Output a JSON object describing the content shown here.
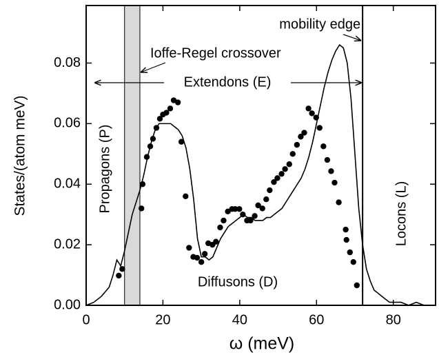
{
  "chart_data": {
    "type": "line",
    "x_label": "ω (meV)",
    "y_label": "States/(atom meV)",
    "xlim": [
      0,
      91
    ],
    "ylim": [
      0,
      0.099
    ],
    "xticks": [
      0,
      20,
      40,
      60,
      80
    ],
    "yticks": [
      {
        "value": 0,
        "label": "0.00"
      },
      {
        "value": 0.02,
        "label": "0.02"
      },
      {
        "value": 0.04,
        "label": "0.04"
      },
      {
        "value": 0.06,
        "label": "0.06"
      },
      {
        "value": 0.08,
        "label": "0.08"
      }
    ],
    "shaded_band": [
      10,
      14
    ],
    "band_color": "#d9d9d9",
    "mobility_edge": 72,
    "annotations": {
      "mobility": "mobility edge",
      "ioffe": "Ioffe-Regel crossover",
      "extendons": "Extendons (E)",
      "propagons": "Propagons (P)",
      "locons": "Locons (L)",
      "diffusons": "Diffusons (D)"
    },
    "series": [
      {
        "type": "line",
        "color": "#000000",
        "x": [
          0,
          2,
          4,
          6,
          7,
          8,
          9,
          10,
          11,
          12,
          13,
          14,
          15,
          16,
          17,
          18,
          19,
          20,
          21,
          22,
          23,
          24,
          25,
          26,
          27,
          28,
          29,
          30,
          31,
          32,
          33,
          34,
          35,
          36,
          37,
          38,
          39,
          40,
          41,
          42,
          43,
          44,
          45,
          46,
          47,
          48,
          49,
          50,
          51,
          52,
          53,
          54,
          55,
          56,
          57,
          58,
          59,
          60,
          61,
          62,
          63,
          64,
          65,
          66,
          67,
          68,
          69,
          70,
          71,
          72,
          73,
          74,
          75,
          76,
          77,
          78,
          79,
          80,
          82,
          84,
          86,
          88
        ],
        "values": [
          0,
          0.001,
          0.003,
          0.006,
          0.01,
          0.015,
          0.013,
          0.018,
          0.024,
          0.03,
          0.034,
          0.038,
          0.043,
          0.049,
          0.054,
          0.058,
          0.06,
          0.06,
          0.06,
          0.06,
          0.059,
          0.058,
          0.056,
          0.052,
          0.045,
          0.035,
          0.022,
          0.016,
          0.016,
          0.015,
          0.016,
          0.019,
          0.022,
          0.024,
          0.026,
          0.027,
          0.028,
          0.029,
          0.03,
          0.029,
          0.029,
          0.028,
          0.028,
          0.028,
          0.029,
          0.029,
          0.03,
          0.031,
          0.032,
          0.034,
          0.036,
          0.038,
          0.04,
          0.042,
          0.045,
          0.049,
          0.054,
          0.06,
          0.066,
          0.072,
          0.077,
          0.081,
          0.084,
          0.086,
          0.085,
          0.08,
          0.068,
          0.05,
          0.032,
          0.02,
          0.012,
          0.008,
          0.005,
          0.004,
          0.003,
          0.002,
          0.001,
          0.001,
          0.001,
          0,
          0.001,
          0
        ]
      },
      {
        "type": "scatter",
        "color": "#000000",
        "x": [
          8.5,
          9.4,
          14.4,
          14.7,
          15.8,
          16.7,
          17.4,
          18.3,
          19.2,
          20,
          20.9,
          21.9,
          22.8,
          23.9,
          24.8,
          25.9,
          26.8,
          27.9,
          28.9,
          30,
          30.9,
          31.8,
          32.9,
          33.8,
          34.9,
          35.8,
          36.9,
          38,
          38.8,
          39.9,
          40.8,
          41.9,
          42.8,
          43.9,
          44.8,
          45.9,
          46.9,
          47.8,
          48.9,
          49.8,
          50.9,
          51.8,
          52.9,
          53.8,
          54.9,
          55.9,
          56.8,
          57.9,
          58.8,
          59.9,
          60.8,
          61.8,
          62.8,
          63.8,
          64.7,
          65.8,
          67.6,
          67.8,
          68.7,
          69.6,
          70.5
        ],
        "values": [
          0.0098,
          0.012,
          0.032,
          0.04,
          0.049,
          0.0525,
          0.055,
          0.0586,
          0.0616,
          0.063,
          0.0636,
          0.065,
          0.0677,
          0.067,
          0.054,
          0.036,
          0.019,
          0.016,
          0.0157,
          0.0143,
          0.017,
          0.0205,
          0.02,
          0.021,
          0.0257,
          0.028,
          0.031,
          0.0318,
          0.0318,
          0.0318,
          0.03,
          0.028,
          0.028,
          0.0295,
          0.033,
          0.032,
          0.035,
          0.038,
          0.0407,
          0.042,
          0.0434,
          0.045,
          0.0466,
          0.05,
          0.053,
          0.0557,
          0.057,
          0.065,
          0.0634,
          0.062,
          0.0586,
          0.0525,
          0.048,
          0.0443,
          0.0405,
          0.034,
          0.025,
          0.0216,
          0.0175,
          0.0143,
          0.0066
        ]
      }
    ]
  }
}
